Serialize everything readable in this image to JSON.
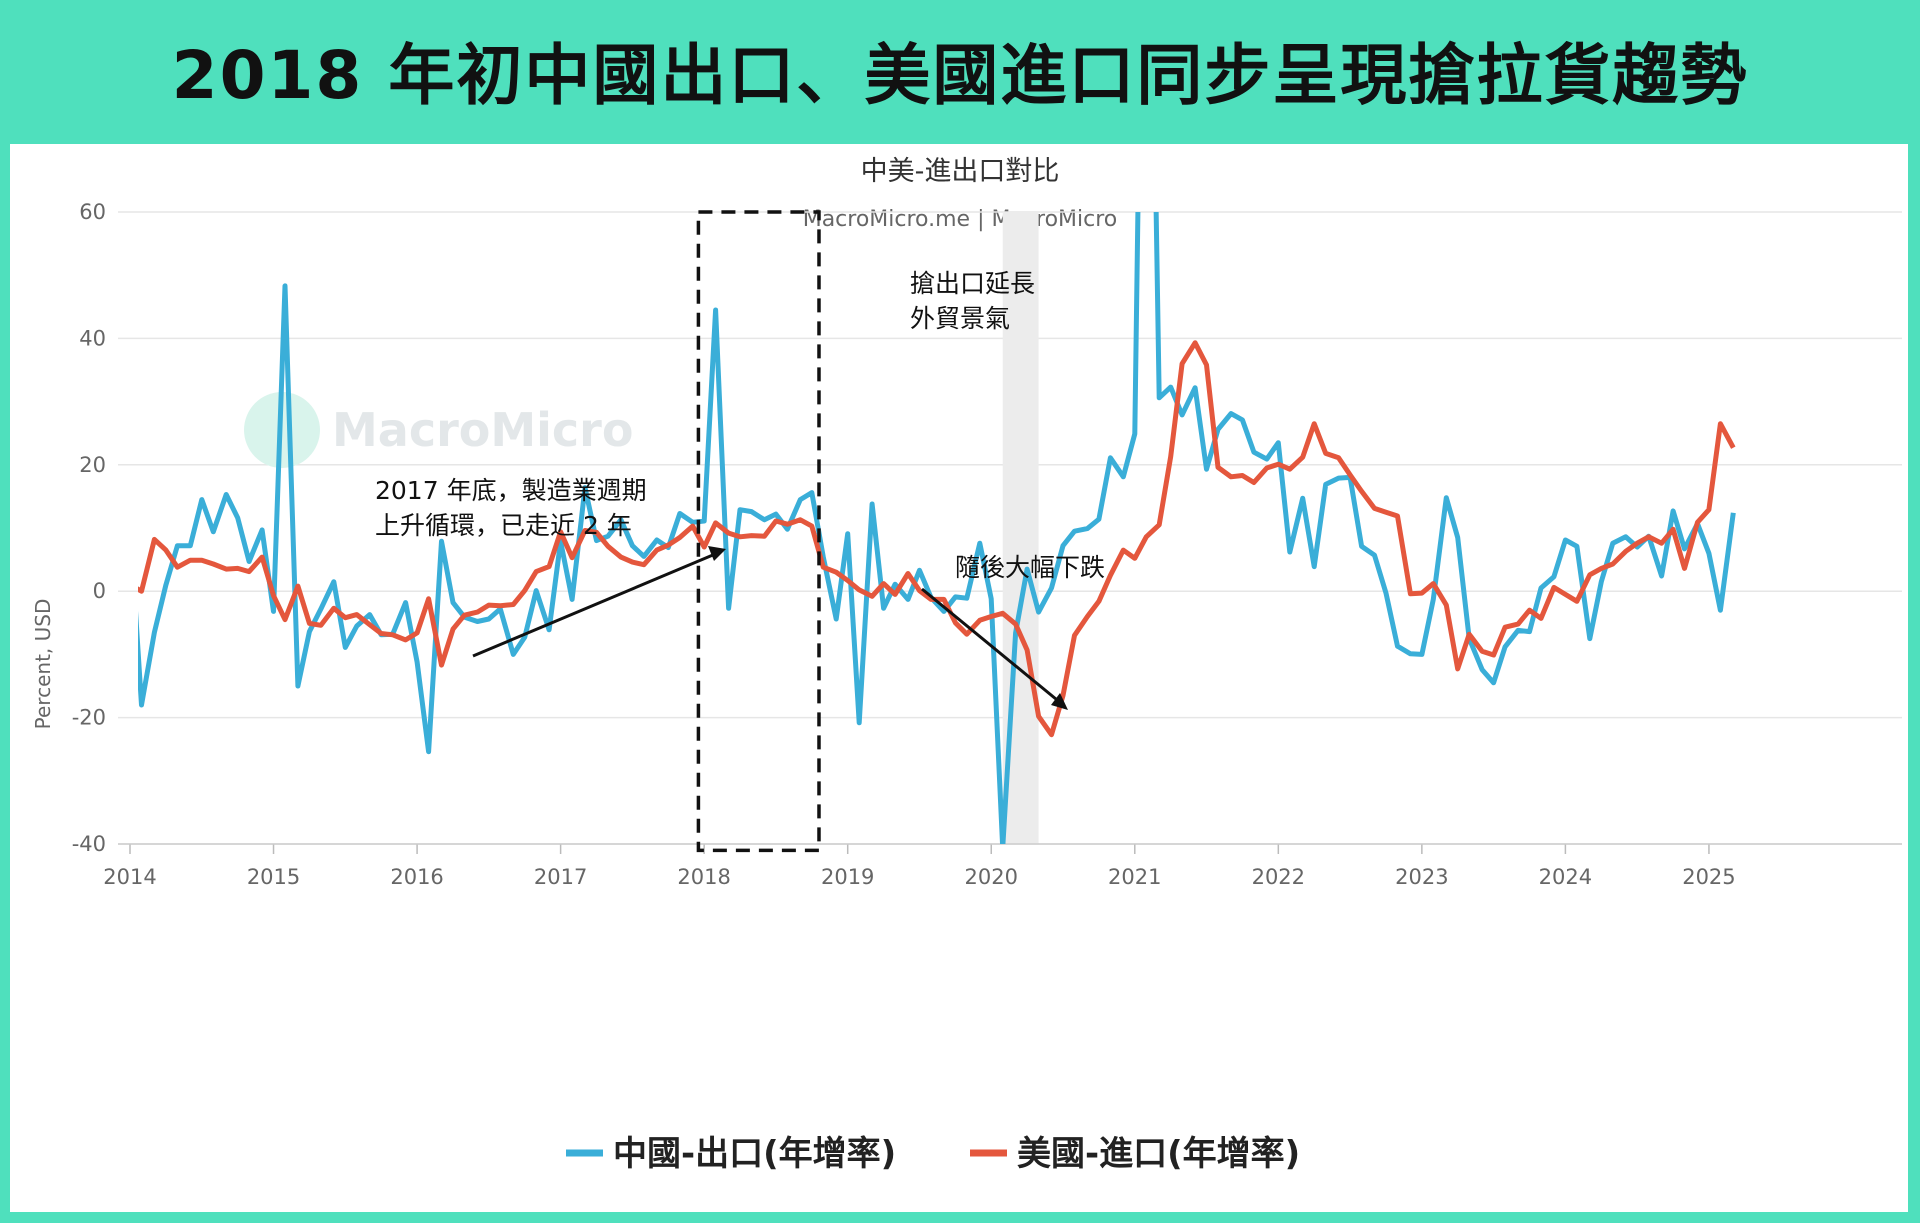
{
  "headline": "2018 年初中國出口、美國進口同步呈現搶拉貨趨勢",
  "chart_data": {
    "type": "line",
    "title": "中美-進出口對比",
    "subtitle": "MacroMicro.me | MacroMicro",
    "watermark": "MacroMicro",
    "ylabel": "Percent, USD",
    "ylim": [
      -40,
      60
    ],
    "yticks": [
      "60",
      "40",
      "20",
      "0",
      "-20",
      "-40"
    ],
    "xlim": [
      2014,
      2025.33
    ],
    "xticks": [
      "2014",
      "2015",
      "2016",
      "2017",
      "2018",
      "2019",
      "2020",
      "2021",
      "2022",
      "2023",
      "2024",
      "2025"
    ],
    "legend_position": "bottom",
    "grid": true,
    "recession_band": [
      2020.08,
      2020.33
    ],
    "highlight_box": {
      "x": [
        2017.96,
        2018.8
      ],
      "y": [
        -41,
        60
      ]
    },
    "annotations": [
      {
        "lines": [
          "搶出口延長",
          "外貿景氣"
        ]
      },
      {
        "lines": [
          "2017 年底，製造業週期",
          "上升循環，已走近 2 年"
        ]
      },
      {
        "lines": [
          "隨後大幅下跌"
        ]
      }
    ],
    "series": [
      {
        "name": "中國-出口(年增率)",
        "color": "#3aaed8",
        "points": [
          [
            2014.0,
            10.5
          ],
          [
            2014.08,
            -18
          ],
          [
            2014.17,
            -6.5
          ],
          [
            2014.25,
            1
          ],
          [
            2014.33,
            7.2
          ],
          [
            2014.42,
            7.2
          ],
          [
            2014.5,
            14.5
          ],
          [
            2014.58,
            9.4
          ],
          [
            2014.67,
            15.3
          ],
          [
            2014.75,
            11.6
          ],
          [
            2014.83,
            4.7
          ],
          [
            2014.92,
            9.7
          ],
          [
            2015.0,
            -3.2
          ],
          [
            2015.08,
            48.3
          ],
          [
            2015.17,
            -15
          ],
          [
            2015.25,
            -6.4
          ],
          [
            2015.33,
            -2.8
          ],
          [
            2015.42,
            1.5
          ],
          [
            2015.5,
            -8.9
          ],
          [
            2015.58,
            -5.5
          ],
          [
            2015.67,
            -3.7
          ],
          [
            2015.75,
            -6.9
          ],
          [
            2015.83,
            -6.8
          ],
          [
            2015.92,
            -1.8
          ],
          [
            2016.0,
            -11.2
          ],
          [
            2016.08,
            -25.4
          ],
          [
            2016.17,
            7.9
          ],
          [
            2016.25,
            -1.8
          ],
          [
            2016.33,
            -4.1
          ],
          [
            2016.42,
            -4.8
          ],
          [
            2016.5,
            -4.4
          ],
          [
            2016.58,
            -2.8
          ],
          [
            2016.67,
            -10
          ],
          [
            2016.75,
            -7.3
          ],
          [
            2016.83,
            0.1
          ],
          [
            2016.92,
            -6.1
          ],
          [
            2017.0,
            7.9
          ],
          [
            2017.08,
            -1.3
          ],
          [
            2017.17,
            16.4
          ],
          [
            2017.25,
            8
          ],
          [
            2017.33,
            8.7
          ],
          [
            2017.42,
            11.3
          ],
          [
            2017.5,
            7.2
          ],
          [
            2017.58,
            5.5
          ],
          [
            2017.67,
            8.1
          ],
          [
            2017.75,
            6.9
          ],
          [
            2017.83,
            12.3
          ],
          [
            2017.92,
            10.9
          ],
          [
            2018.0,
            11.1
          ],
          [
            2018.08,
            44.5
          ],
          [
            2018.17,
            -2.7
          ],
          [
            2018.25,
            12.9
          ],
          [
            2018.33,
            12.6
          ],
          [
            2018.42,
            11.3
          ],
          [
            2018.5,
            12.2
          ],
          [
            2018.58,
            9.8
          ],
          [
            2018.67,
            14.5
          ],
          [
            2018.75,
            15.6
          ],
          [
            2018.83,
            5.4
          ],
          [
            2018.92,
            -4.4
          ],
          [
            2019.0,
            9.1
          ],
          [
            2019.08,
            -20.8
          ],
          [
            2019.17,
            13.8
          ],
          [
            2019.25,
            -2.7
          ],
          [
            2019.33,
            1.1
          ],
          [
            2019.42,
            -1.3
          ],
          [
            2019.5,
            3.3
          ],
          [
            2019.58,
            -1
          ],
          [
            2019.67,
            -3.2
          ],
          [
            2019.75,
            -0.9
          ],
          [
            2019.83,
            -1.1
          ],
          [
            2019.92,
            7.6
          ],
          [
            2020.0,
            -1.2
          ],
          [
            2020.08,
            -40.6
          ],
          [
            2020.17,
            -6.6
          ],
          [
            2020.25,
            3.5
          ],
          [
            2020.33,
            -3.3
          ],
          [
            2020.42,
            0.5
          ],
          [
            2020.5,
            7.2
          ],
          [
            2020.58,
            9.5
          ],
          [
            2020.67,
            9.9
          ],
          [
            2020.75,
            11.4
          ],
          [
            2020.83,
            21.1
          ],
          [
            2020.92,
            18.1
          ],
          [
            2021.0,
            24.9
          ],
          [
            2021.08,
            154.9
          ],
          [
            2021.17,
            30.6
          ],
          [
            2021.25,
            32.3
          ],
          [
            2021.33,
            27.9
          ],
          [
            2021.42,
            32.2
          ],
          [
            2021.5,
            19.3
          ],
          [
            2021.58,
            25.6
          ],
          [
            2021.67,
            28.1
          ],
          [
            2021.75,
            27.1
          ],
          [
            2021.83,
            22
          ],
          [
            2021.92,
            20.9
          ],
          [
            2022.0,
            23.5
          ],
          [
            2022.08,
            6.2
          ],
          [
            2022.17,
            14.7
          ],
          [
            2022.25,
            3.9
          ],
          [
            2022.33,
            16.9
          ],
          [
            2022.42,
            17.9
          ],
          [
            2022.5,
            18
          ],
          [
            2022.58,
            7.1
          ],
          [
            2022.67,
            5.7
          ],
          [
            2022.75,
            -0.3
          ],
          [
            2022.83,
            -8.7
          ],
          [
            2022.92,
            -9.9
          ],
          [
            2023.0,
            -10
          ],
          [
            2023.08,
            -1.3
          ],
          [
            2023.17,
            14.8
          ],
          [
            2023.25,
            8.5
          ],
          [
            2023.33,
            -7.5
          ],
          [
            2023.42,
            -12.4
          ],
          [
            2023.5,
            -14.5
          ],
          [
            2023.58,
            -8.8
          ],
          [
            2023.67,
            -6.2
          ],
          [
            2023.75,
            -6.4
          ],
          [
            2023.83,
            0.5
          ],
          [
            2023.92,
            2.3
          ],
          [
            2024.0,
            8.1
          ],
          [
            2024.08,
            7.1
          ],
          [
            2024.17,
            -7.5
          ],
          [
            2024.25,
            1.5
          ],
          [
            2024.33,
            7.6
          ],
          [
            2024.42,
            8.6
          ],
          [
            2024.5,
            7
          ],
          [
            2024.58,
            8.7
          ],
          [
            2024.67,
            2.4
          ],
          [
            2024.75,
            12.7
          ],
          [
            2024.83,
            6.7
          ],
          [
            2024.92,
            10.7
          ],
          [
            2025.0,
            6
          ],
          [
            2025.08,
            -3
          ],
          [
            2025.17,
            12.4
          ]
        ]
      },
      {
        "name": "美國-進口(年增率)",
        "color": "#e4573d",
        "points": [
          [
            2014.0,
            1
          ],
          [
            2014.08,
            0
          ],
          [
            2014.17,
            8.2
          ],
          [
            2014.25,
            6.5
          ],
          [
            2014.33,
            3.8
          ],
          [
            2014.42,
            4.9
          ],
          [
            2014.5,
            4.9
          ],
          [
            2014.58,
            4.3
          ],
          [
            2014.67,
            3.5
          ],
          [
            2014.75,
            3.6
          ],
          [
            2014.83,
            3.1
          ],
          [
            2014.92,
            5.4
          ],
          [
            2015.0,
            -0.7
          ],
          [
            2015.08,
            -4.5
          ],
          [
            2015.17,
            0.8
          ],
          [
            2015.25,
            -5.1
          ],
          [
            2015.33,
            -5.4
          ],
          [
            2015.42,
            -2.7
          ],
          [
            2015.5,
            -4.2
          ],
          [
            2015.58,
            -3.7
          ],
          [
            2015.67,
            -5.3
          ],
          [
            2015.75,
            -6.7
          ],
          [
            2015.83,
            -6.9
          ],
          [
            2015.92,
            -7.7
          ],
          [
            2016.0,
            -6.6
          ],
          [
            2016.08,
            -1.2
          ],
          [
            2016.17,
            -11.7
          ],
          [
            2016.25,
            -6
          ],
          [
            2016.33,
            -3.8
          ],
          [
            2016.42,
            -3.3
          ],
          [
            2016.5,
            -2.2
          ],
          [
            2016.58,
            -2.3
          ],
          [
            2016.67,
            -2.1
          ],
          [
            2016.75,
            0.1
          ],
          [
            2016.83,
            3.1
          ],
          [
            2016.92,
            3.9
          ],
          [
            2017.0,
            9.4
          ],
          [
            2017.08,
            5.3
          ],
          [
            2017.17,
            9.6
          ],
          [
            2017.25,
            9.3
          ],
          [
            2017.33,
            7.1
          ],
          [
            2017.42,
            5.4
          ],
          [
            2017.5,
            4.6
          ],
          [
            2017.58,
            4.2
          ],
          [
            2017.67,
            6.5
          ],
          [
            2017.75,
            7.3
          ],
          [
            2017.83,
            8.5
          ],
          [
            2017.92,
            10.3
          ],
          [
            2018.0,
            7
          ],
          [
            2018.08,
            10.8
          ],
          [
            2018.17,
            9.2
          ],
          [
            2018.25,
            8.6
          ],
          [
            2018.33,
            8.8
          ],
          [
            2018.42,
            8.7
          ],
          [
            2018.5,
            11.1
          ],
          [
            2018.58,
            10.6
          ],
          [
            2018.67,
            11.3
          ],
          [
            2018.75,
            10.3
          ],
          [
            2018.83,
            3.8
          ],
          [
            2018.92,
            3
          ],
          [
            2019.0,
            1.7
          ],
          [
            2019.08,
            0.2
          ],
          [
            2019.17,
            -0.8
          ],
          [
            2019.25,
            1.2
          ],
          [
            2019.33,
            -0.5
          ],
          [
            2019.42,
            2.8
          ],
          [
            2019.5,
            0.1
          ],
          [
            2019.58,
            -1.3
          ],
          [
            2019.67,
            -1.3
          ],
          [
            2019.75,
            -5
          ],
          [
            2019.83,
            -6.8
          ],
          [
            2019.92,
            -4.6
          ],
          [
            2020.0,
            -4
          ],
          [
            2020.08,
            -3.5
          ],
          [
            2020.17,
            -5.2
          ],
          [
            2020.25,
            -9.3
          ],
          [
            2020.33,
            -19.8
          ],
          [
            2020.42,
            -22.7
          ],
          [
            2020.5,
            -16.5
          ],
          [
            2020.58,
            -7
          ],
          [
            2020.67,
            -4
          ],
          [
            2020.75,
            -1.6
          ],
          [
            2020.83,
            2.5
          ],
          [
            2020.92,
            6.5
          ],
          [
            2021.0,
            5.2
          ],
          [
            2021.08,
            8.6
          ],
          [
            2021.17,
            10.5
          ],
          [
            2021.25,
            21.3
          ],
          [
            2021.33,
            36
          ],
          [
            2021.42,
            39.3
          ],
          [
            2021.5,
            35.8
          ],
          [
            2021.58,
            19.6
          ],
          [
            2021.67,
            18.1
          ],
          [
            2021.75,
            18.3
          ],
          [
            2021.83,
            17.2
          ],
          [
            2021.92,
            19.5
          ],
          [
            2022.0,
            20.1
          ],
          [
            2022.08,
            19.3
          ],
          [
            2022.17,
            21.2
          ],
          [
            2022.25,
            26.5
          ],
          [
            2022.33,
            21.8
          ],
          [
            2022.42,
            21.1
          ],
          [
            2022.5,
            18.4
          ],
          [
            2022.58,
            15.8
          ],
          [
            2022.67,
            13.1
          ],
          [
            2022.75,
            12.5
          ],
          [
            2022.83,
            11.9
          ],
          [
            2022.92,
            -0.4
          ],
          [
            2023.0,
            -0.3
          ],
          [
            2023.08,
            1.2
          ],
          [
            2023.17,
            -2.2
          ],
          [
            2023.25,
            -12.3
          ],
          [
            2023.33,
            -6.8
          ],
          [
            2023.42,
            -9.5
          ],
          [
            2023.5,
            -10.1
          ],
          [
            2023.58,
            -5.7
          ],
          [
            2023.67,
            -5.2
          ],
          [
            2023.75,
            -3
          ],
          [
            2023.83,
            -4.3
          ],
          [
            2023.92,
            0.6
          ],
          [
            2024.0,
            -0.5
          ],
          [
            2024.08,
            -1.6
          ],
          [
            2024.17,
            2.6
          ],
          [
            2024.25,
            3.6
          ],
          [
            2024.33,
            4.3
          ],
          [
            2024.42,
            6.3
          ],
          [
            2024.5,
            7.6
          ],
          [
            2024.58,
            8.6
          ],
          [
            2024.67,
            7.6
          ],
          [
            2024.75,
            9.8
          ],
          [
            2024.83,
            3.6
          ],
          [
            2024.92,
            10.9
          ],
          [
            2025.0,
            12.9
          ],
          [
            2025.08,
            26.5
          ],
          [
            2025.17,
            22.7
          ]
        ]
      }
    ]
  }
}
